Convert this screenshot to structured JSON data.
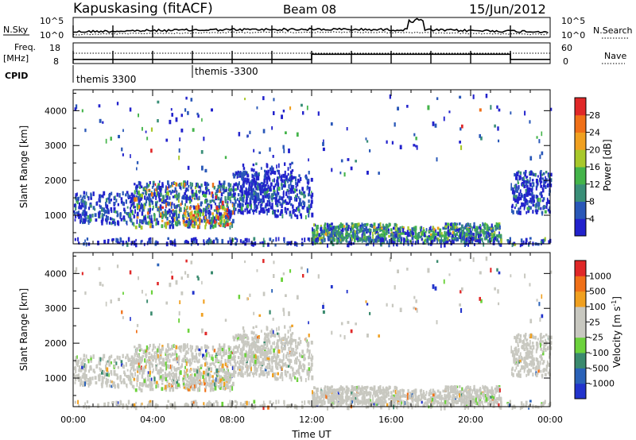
{
  "header": {
    "station": "Kapuskasing (fitACF)",
    "beam": "Beam 08",
    "date": "15/Jun/2012"
  },
  "colors": {
    "power": [
      "#2222cc",
      "#2a58b8",
      "#3a8f78",
      "#44b44a",
      "#a8c82a",
      "#f0a020",
      "#f07018",
      "#e02828"
    ],
    "velocity": [
      "#2234cc",
      "#2a62b8",
      "#3a8a6e",
      "#6cd23c",
      "#c8c8c0",
      "#c8c8c0",
      "#f0a020",
      "#f07018",
      "#e02828"
    ]
  },
  "chart_data": [
    {
      "type": "line",
      "name": "noise-panel",
      "left_labels": [
        "N.Sky",
        "10^5",
        "10^0"
      ],
      "right_labels": [
        "10^5",
        "10^0",
        "N.Search"
      ],
      "series": [
        {
          "name": "N.Sky",
          "style": "solid"
        },
        {
          "name": "N.Search",
          "style": "dotted"
        }
      ]
    },
    {
      "type": "line",
      "name": "freq-panel",
      "left_labels": [
        "Freq.",
        "[MHz]",
        "18",
        "8"
      ],
      "right_labels": [
        "60",
        "0",
        "Nave"
      ],
      "x": [
        "00:00",
        "12:00",
        "22:00",
        "24:00"
      ],
      "freq": [
        10,
        12.5,
        10,
        10
      ],
      "series": [
        {
          "name": "Freq.",
          "style": "solid"
        },
        {
          "name": "Nave",
          "style": "dotted"
        }
      ]
    },
    {
      "type": "table",
      "name": "cpid-panel",
      "label": "CPID",
      "entries": [
        {
          "time": "00:00",
          "text": "themis 3300"
        },
        {
          "time": "06:00",
          "text": "themis -3300"
        }
      ]
    },
    {
      "type": "heatmap",
      "name": "power-panel",
      "ylabel": "Slant Range [km]",
      "ylim": [
        180,
        4600
      ],
      "yticks": [
        "1000",
        "2000",
        "3000",
        "4000"
      ],
      "colorbar_label": "Power [dB]",
      "colorbar_ticks": [
        "4",
        "8",
        "12",
        "16",
        "20",
        "24",
        "28"
      ],
      "features": [
        {
          "x": [
            0,
            8
          ],
          "range": [
            750,
            2100
          ],
          "level": "blue-green, yellow-red core near 06:00–08:00"
        },
        {
          "x": [
            8,
            12
          ],
          "range": [
            900,
            2400
          ],
          "level": "blue"
        },
        {
          "x": [
            12,
            21
          ],
          "range": [
            300,
            800
          ],
          "level": "green-blue"
        },
        {
          "x": [
            22,
            24
          ],
          "range": [
            1100,
            2300
          ],
          "level": "blue"
        }
      ]
    },
    {
      "type": "heatmap",
      "name": "velocity-panel",
      "ylabel": "Slant Range [km]",
      "ylim": [
        180,
        4600
      ],
      "yticks": [
        "1000",
        "2000",
        "3000",
        "4000"
      ],
      "colorbar_label": "Velocity [m s",
      "colorbar_sup": "-1",
      "colorbar_ticks": [
        "1000",
        "500",
        "100",
        "25",
        "-25",
        "-100",
        "-500",
        "-1000"
      ],
      "xlabel": "Time UT",
      "xticks": [
        "00:00",
        "04:00",
        "08:00",
        "12:00",
        "16:00",
        "20:00",
        "00:00"
      ],
      "features": [
        {
          "x": [
            0,
            12
          ],
          "range": [
            750,
            2300
          ],
          "level": "mostly grey, scattered green and orange"
        },
        {
          "x": [
            12,
            21
          ],
          "range": [
            300,
            800
          ],
          "level": "grey"
        },
        {
          "x": [
            22,
            24
          ],
          "range": [
            1100,
            2300
          ],
          "level": "grey"
        }
      ]
    }
  ]
}
